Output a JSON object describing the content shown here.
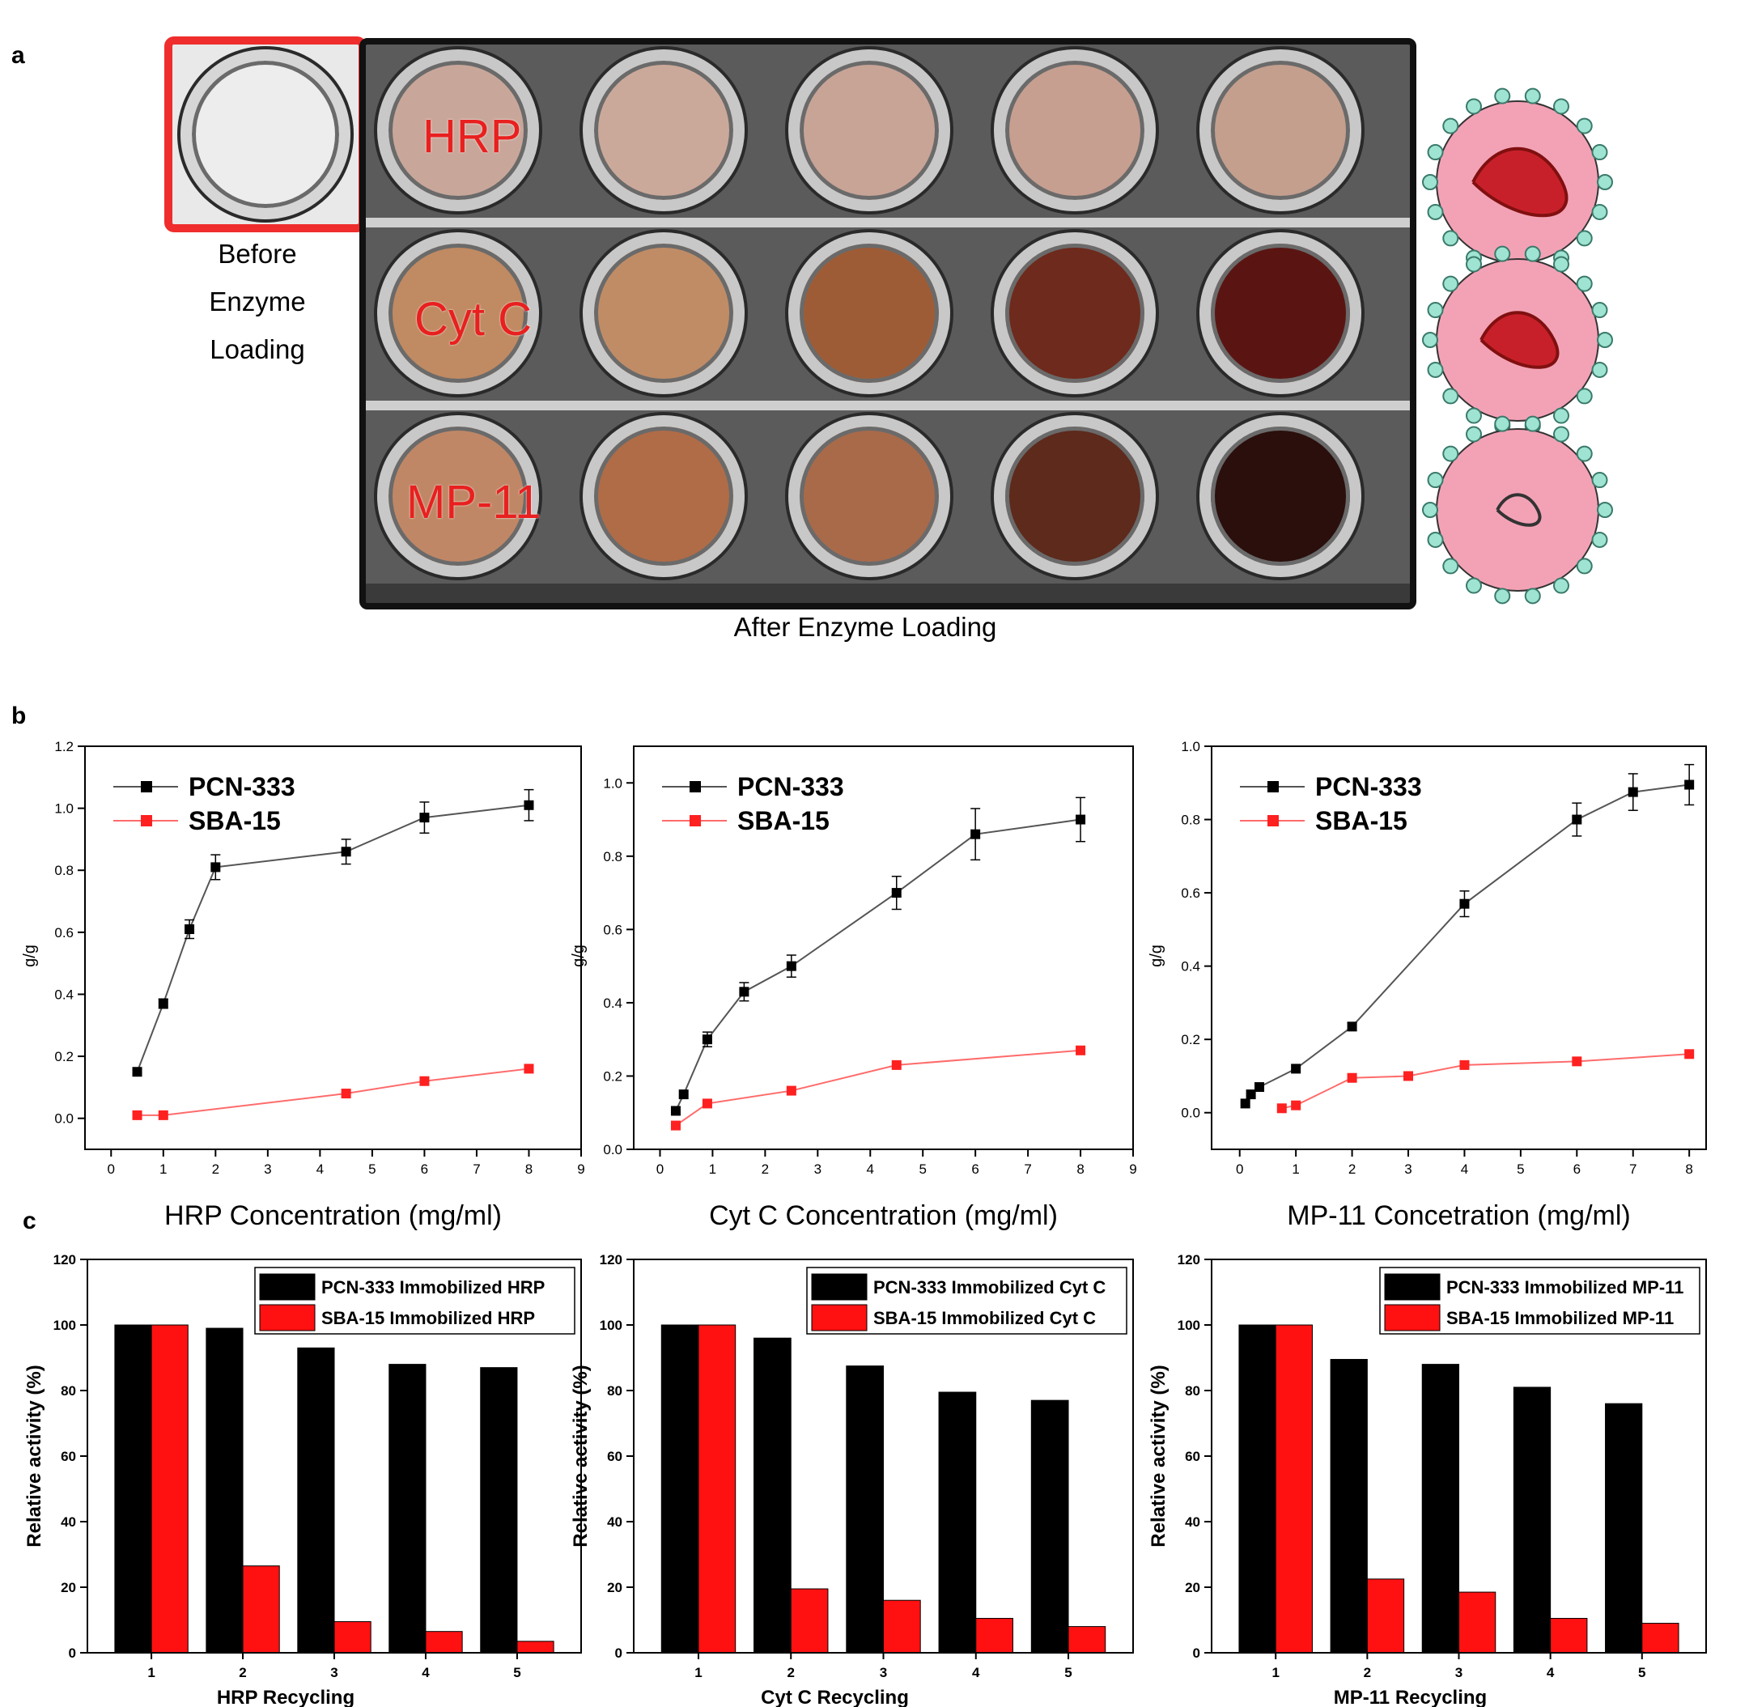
{
  "panel_letters": {
    "a": "a",
    "b": "b",
    "c": "c"
  },
  "panel_a": {
    "before_caption_lines": [
      "Before",
      "Enzyme",
      "Loading"
    ],
    "after_caption": "After Enzyme Loading",
    "row_labels": [
      "HRP",
      "Cyt C",
      "MP-11"
    ],
    "vial_colors": [
      [
        "#c8a79a",
        "#cba99a",
        "#c8a497",
        "#c69f90",
        "#c49f8e"
      ],
      [
        "#c08a62",
        "#c08c66",
        "#9e5c36",
        "#6e2a1c",
        "#5a1512"
      ],
      [
        "#c08766",
        "#b06c47",
        "#a96a4a",
        "#5d2a1c",
        "#2a0f0c"
      ]
    ],
    "before_vial_color": "#ececec"
  },
  "chart_data": [
    {
      "type": "line",
      "xlabel": "HRP Concentration (mg/ml)",
      "ylabel": "g/g",
      "xlim": [
        -0.5,
        9
      ],
      "ylim": [
        -0.1,
        1.2
      ],
      "xticks": [
        0,
        1,
        2,
        3,
        4,
        5,
        6,
        7,
        8,
        9
      ],
      "yticks": [
        0.0,
        0.2,
        0.4,
        0.6,
        0.8,
        1.0,
        1.2
      ],
      "ytick_labels": [
        "0.0",
        "0.2",
        "0.4",
        "0.6",
        "0.8",
        "1.0",
        "1.2"
      ],
      "legend_position": "top-left",
      "series": [
        {
          "name": "PCN-333",
          "color": "#000000",
          "line": "#555555",
          "x": [
            0.5,
            1,
            1.5,
            2,
            4.5,
            6,
            8
          ],
          "y": [
            0.15,
            0.37,
            0.61,
            0.81,
            0.86,
            0.97,
            1.01
          ],
          "err": [
            0,
            0.015,
            0.03,
            0.04,
            0.04,
            0.05,
            0.05
          ]
        },
        {
          "name": "SBA-15",
          "color": "#ff2020",
          "line": "#ff6b6b",
          "x": [
            0.5,
            1,
            4.5,
            6,
            8
          ],
          "y": [
            0.01,
            0.01,
            0.08,
            0.12,
            0.16
          ],
          "err": [
            0,
            0,
            0,
            0,
            0
          ]
        }
      ]
    },
    {
      "type": "line",
      "xlabel": "Cyt C Concentration (mg/ml)",
      "ylabel": "g/g",
      "xlim": [
        -0.5,
        9
      ],
      "ylim": [
        0.0,
        1.1
      ],
      "xticks": [
        0,
        1,
        2,
        3,
        4,
        5,
        6,
        7,
        8,
        9
      ],
      "yticks": [
        0.0,
        0.2,
        0.4,
        0.6,
        0.8,
        1.0
      ],
      "ytick_labels": [
        "0.0",
        "0.2",
        "0.4",
        "0.6",
        "0.8",
        "1.0"
      ],
      "legend_position": "top-left",
      "series": [
        {
          "name": "PCN-333",
          "color": "#000000",
          "line": "#555555",
          "x": [
            0.3,
            0.45,
            0.9,
            1.6,
            2.5,
            4.5,
            6,
            8
          ],
          "y": [
            0.105,
            0.15,
            0.3,
            0.43,
            0.5,
            0.7,
            0.86,
            0.9
          ],
          "err": [
            0,
            0,
            0.02,
            0.025,
            0.03,
            0.045,
            0.07,
            0.06
          ]
        },
        {
          "name": "SBA-15",
          "color": "#ff2020",
          "line": "#ff6b6b",
          "x": [
            0.3,
            0.9,
            2.5,
            4.5,
            8
          ],
          "y": [
            0.065,
            0.125,
            0.16,
            0.23,
            0.27
          ],
          "err": [
            0,
            0,
            0,
            0,
            0
          ]
        }
      ]
    },
    {
      "type": "line",
      "xlabel": "MP-11 Concetration (mg/ml)",
      "ylabel": "g/g",
      "xlim": [
        -0.5,
        8.3
      ],
      "ylim": [
        -0.1,
        1.0
      ],
      "xticks": [
        0,
        1,
        2,
        3,
        4,
        5,
        6,
        7,
        8
      ],
      "yticks": [
        0.0,
        0.2,
        0.4,
        0.6,
        0.8,
        1.0
      ],
      "ytick_labels": [
        "0.0",
        "0.2",
        "0.4",
        "0.6",
        "0.8",
        "1.0"
      ],
      "legend_position": "top-left",
      "series": [
        {
          "name": "PCN-333",
          "color": "#000000",
          "line": "#555555",
          "x": [
            0.1,
            0.2,
            0.35,
            1,
            2,
            4,
            6,
            7,
            8
          ],
          "y": [
            0.025,
            0.05,
            0.07,
            0.12,
            0.235,
            0.57,
            0.8,
            0.875,
            0.895
          ],
          "err": [
            0,
            0,
            0,
            0,
            0.01,
            0.035,
            0.045,
            0.05,
            0.055
          ]
        },
        {
          "name": "SBA-15",
          "color": "#ff2020",
          "line": "#ff6b6b",
          "x": [
            0.75,
            1,
            2,
            3,
            4,
            6,
            8
          ],
          "y": [
            0.012,
            0.02,
            0.095,
            0.1,
            0.13,
            0.14,
            0.16
          ],
          "err": [
            0,
            0,
            0,
            0,
            0,
            0,
            0
          ]
        }
      ]
    },
    {
      "type": "bar",
      "xlabel": "HRP Recycling",
      "ylabel": "Relative activity (%)",
      "categories": [
        "1",
        "2",
        "3",
        "4",
        "5"
      ],
      "ylim": [
        0,
        120
      ],
      "yticks": [
        0,
        20,
        40,
        60,
        80,
        100,
        120
      ],
      "legend_position": "top-right",
      "series": [
        {
          "name": "PCN-333 Immobilized HRP",
          "color": "#000000",
          "values": [
            100,
            99,
            93,
            88,
            87
          ]
        },
        {
          "name": "SBA-15 Immobilized HRP",
          "color": "#ff1111",
          "values": [
            100,
            26.5,
            9.5,
            6.5,
            3.5
          ]
        }
      ]
    },
    {
      "type": "bar",
      "xlabel": "Cyt C Recycling",
      "ylabel": "Relative activity (%)",
      "categories": [
        "1",
        "2",
        "3",
        "4",
        "5"
      ],
      "ylim": [
        0,
        120
      ],
      "yticks": [
        0,
        20,
        40,
        60,
        80,
        100,
        120
      ],
      "legend_position": "top-right",
      "series": [
        {
          "name": "PCN-333 Immobilized Cyt C",
          "color": "#000000",
          "values": [
            100,
            96,
            87.5,
            79.5,
            77
          ]
        },
        {
          "name": "SBA-15 Immobilized Cyt C",
          "color": "#ff1111",
          "values": [
            100,
            19.5,
            16,
            10.5,
            8
          ]
        }
      ]
    },
    {
      "type": "bar",
      "xlabel": "MP-11 Recycling",
      "ylabel": "Relative activity (%)",
      "categories": [
        "1",
        "2",
        "3",
        "4",
        "5"
      ],
      "ylim": [
        0,
        120
      ],
      "yticks": [
        0,
        20,
        40,
        60,
        80,
        100,
        120
      ],
      "legend_position": "top-right",
      "series": [
        {
          "name": "PCN-333 Immobilized MP-11",
          "color": "#000000",
          "values": [
            100,
            89.5,
            88,
            81,
            76
          ]
        },
        {
          "name": "SBA-15 Immobilized MP-11",
          "color": "#ff1111",
          "values": [
            100,
            22.5,
            18.5,
            10.5,
            9
          ]
        }
      ]
    }
  ]
}
